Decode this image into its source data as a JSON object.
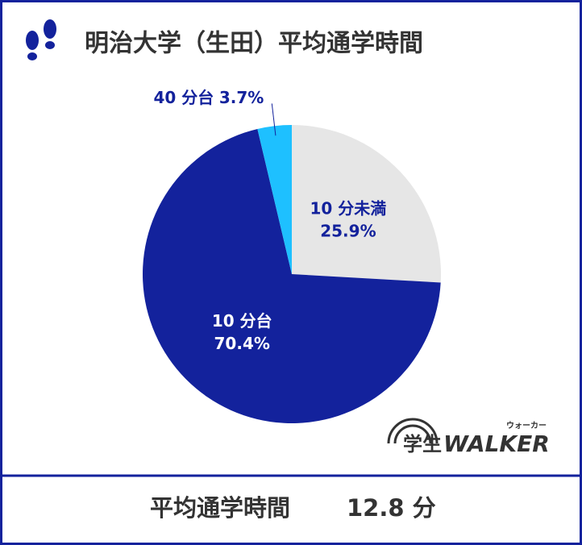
{
  "chart_data": {
    "type": "pie",
    "title": "明治大学（生田）平均通学時間",
    "categories": [
      "10 分未満",
      "10 分台",
      "40 分台"
    ],
    "values": [
      25.9,
      70.4,
      3.7
    ],
    "value_labels": [
      "25.9%",
      "70.4%",
      "3.7%"
    ],
    "colors": [
      "#e6e6e6",
      "#13229c",
      "#1ec0ff"
    ],
    "footer_label": "平均通学時間",
    "footer_value": "12.8 分",
    "logo_text": "学生",
    "logo_brand": "WALKER",
    "logo_kana": "ウォーカー"
  }
}
